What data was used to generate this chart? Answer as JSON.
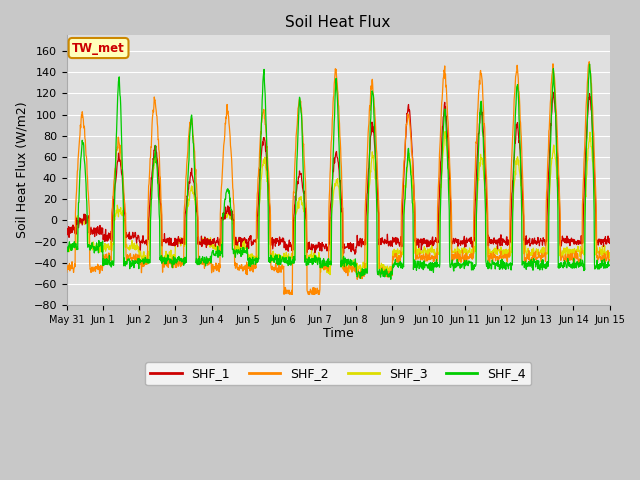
{
  "title": "Soil Heat Flux",
  "xlabel": "Time",
  "ylabel": "Soil Heat Flux (W/m2)",
  "ylim": [
    -80,
    175
  ],
  "yticks": [
    -80,
    -60,
    -40,
    -20,
    0,
    20,
    40,
    60,
    80,
    100,
    120,
    140,
    160
  ],
  "fig_facecolor": "#c8c8c8",
  "plot_facecolor": "#e0e0e0",
  "series_colors": [
    "#cc0000",
    "#ff8800",
    "#dddd00",
    "#00cc00"
  ],
  "series_labels": [
    "SHF_1",
    "SHF_2",
    "SHF_3",
    "SHF_4"
  ],
  "annotation_text": "TW_met",
  "annotation_bg": "#ffffbb",
  "annotation_border": "#cc8800",
  "n_days": 15,
  "points_per_day": 96,
  "xtick_labels": [
    "May 31",
    "Jun 1",
    "Jun 2",
    "Jun 3",
    "Jun 4",
    "Jun 5",
    "Jun 6",
    "Jun 7",
    "Jun 8",
    "Jun 9",
    "Jun 10",
    "Jun 11",
    "Jun 12",
    "Jun 13",
    "Jun 14",
    "Jun 15"
  ],
  "day_peaks": {
    "shf1": [
      0,
      60,
      70,
      45,
      10,
      80,
      45,
      65,
      90,
      110,
      110,
      105,
      90,
      120,
      120
    ],
    "shf2": [
      100,
      75,
      115,
      96,
      105,
      105,
      115,
      142,
      130,
      100,
      142,
      140,
      145,
      145,
      150
    ],
    "shf3": [
      0,
      10,
      60,
      30,
      5,
      60,
      20,
      40,
      60,
      60,
      80,
      60,
      60,
      70,
      80
    ],
    "shf4": [
      75,
      135,
      65,
      100,
      30,
      140,
      115,
      130,
      125,
      65,
      105,
      110,
      130,
      140,
      150
    ]
  },
  "night_levels": {
    "shf1": [
      -10,
      -15,
      -20,
      -20,
      -20,
      -20,
      -25,
      -25,
      -20,
      -20,
      -20,
      -20,
      -20,
      -20,
      -20
    ],
    "shf2": [
      -45,
      -35,
      -40,
      -40,
      -45,
      -45,
      -68,
      -45,
      -50,
      -35,
      -35,
      -35,
      -35,
      -35,
      -35
    ],
    "shf3": [
      -25,
      -25,
      -35,
      -20,
      -25,
      -35,
      -35,
      -45,
      -45,
      -30,
      -30,
      -30,
      -30,
      -30,
      -30
    ],
    "shf4": [
      -25,
      -40,
      -38,
      -38,
      -30,
      -38,
      -38,
      -40,
      -50,
      -42,
      -42,
      -42,
      -42,
      -42,
      -42
    ]
  }
}
